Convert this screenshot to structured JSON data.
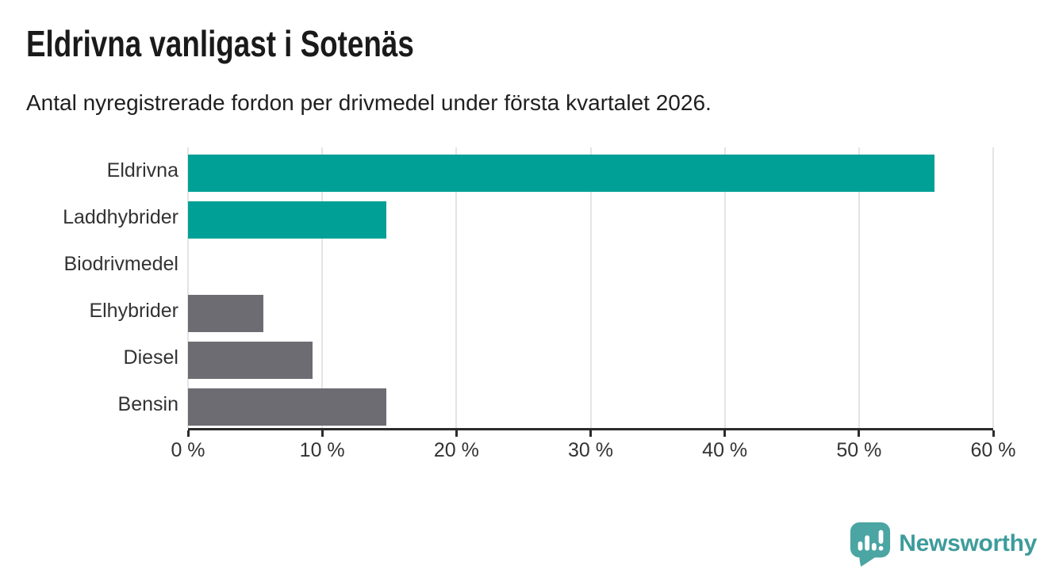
{
  "header": {
    "title": "Eldrivna vanligast i Sotenäs",
    "subtitle": "Antal nyregistrerade fordon per drivmedel under första kvartalet 2026."
  },
  "chart_data": {
    "type": "bar",
    "orientation": "horizontal",
    "title": "Eldrivna vanligast i Sotenäs",
    "subtitle": "Antal nyregistrerade fordon per drivmedel under första kvartalet 2026.",
    "categories": [
      "Eldrivna",
      "Laddhybrider",
      "Biodrivmedel",
      "Elhybrider",
      "Diesel",
      "Bensin"
    ],
    "values": [
      55.6,
      14.8,
      0,
      5.6,
      9.3,
      14.8
    ],
    "unit": "%",
    "xlabel": "",
    "ylabel": "",
    "xlim": [
      0,
      60
    ],
    "x_tick_values": [
      0,
      10,
      20,
      30,
      40,
      50,
      60
    ],
    "x_tick_labels": [
      "0 %",
      "10 %",
      "20 %",
      "30 %",
      "40 %",
      "50 %",
      "60 %"
    ],
    "grid": "vertical",
    "legend": "none",
    "bar_colors": [
      "#00a096",
      "#00a096",
      "#00a096",
      "#6c6c72",
      "#6c6c72",
      "#6c6c72"
    ]
  },
  "footer": {
    "brand": "Newsworthy"
  },
  "colors": {
    "accent_teal": "#00a096",
    "neutral_gray": "#6c6c72",
    "logo_icon_teal": "#4aa5a3",
    "logo_text_teal": "#3d9c9b",
    "grid_line": "#e4e4e4",
    "axis_line": "#2b2b2b",
    "title_text": "#1a1a1a",
    "label_text": "#333333"
  }
}
